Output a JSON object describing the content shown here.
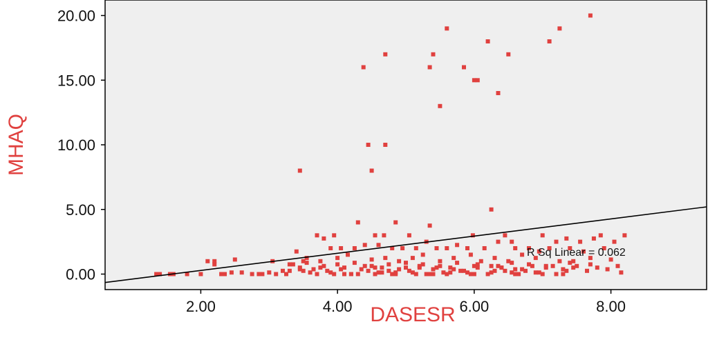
{
  "chart_data": {
    "type": "scatter",
    "xlabel": "DASESR",
    "ylabel": "MHAQ",
    "xlim": [
      0.6,
      9.4
    ],
    "ylim": [
      -1.2,
      21.2
    ],
    "x_ticks": [
      2.0,
      4.0,
      6.0,
      8.0
    ],
    "x_tick_labels": [
      "2.00",
      "4.00",
      "6.00",
      "8.00"
    ],
    "y_ticks": [
      0.0,
      5.0,
      10.0,
      15.0,
      20.0
    ],
    "y_tick_labels": [
      "0.00",
      "5.00",
      "10.00",
      "15.00",
      "20.00"
    ],
    "grid": false,
    "fit_line": {
      "x": [
        0.6,
        9.4
      ],
      "y": [
        -0.65,
        5.2
      ]
    },
    "annotation": "R Sq Linear = 0.062",
    "series": [
      {
        "x": [
          7.7,
          5.6,
          7.25,
          6.2,
          7.1,
          4.7,
          5.4,
          6.5,
          4.38,
          5.35,
          5.85,
          6.0,
          6.05,
          6.35,
          5.5,
          4.45,
          4.7,
          3.45,
          4.5,
          6.25,
          4.3,
          4.85,
          5.35,
          3.7,
          3.95,
          4.55,
          4.68,
          5.05,
          5.98,
          6.45,
          6.55,
          7.0,
          7.2,
          7.35,
          7.55,
          7.75,
          7.85,
          8.2,
          3.4,
          3.55,
          3.8,
          3.9,
          4.05,
          4.25,
          4.4,
          4.6,
          4.8,
          4.95,
          5.15,
          5.3,
          5.45,
          5.6,
          5.75,
          5.9,
          6.15,
          6.35,
          6.6,
          6.8,
          6.95,
          7.1,
          7.4,
          7.6,
          7.9,
          8.05,
          2.1,
          2.2,
          2.5,
          3.05,
          3.3,
          3.5,
          3.75,
          4.0,
          4.15,
          4.5,
          4.7,
          4.9,
          5.1,
          5.25,
          5.5,
          5.7,
          5.95,
          6.1,
          6.3,
          6.5,
          6.7,
          6.9,
          7.25,
          7.45,
          7.7,
          8.0,
          1.4,
          1.6,
          1.8,
          2.3,
          2.6,
          2.9,
          3.2,
          3.45,
          3.65,
          3.85,
          4.1,
          4.35,
          4.55,
          4.75,
          5.0,
          5.2,
          5.4,
          5.65,
          5.85,
          6.05,
          6.25,
          6.4,
          6.6,
          6.85,
          7.05,
          7.3,
          7.5,
          7.8,
          1.35,
          1.55,
          2.0,
          2.35,
          2.75,
          3.1,
          3.3,
          3.6,
          3.95,
          4.2,
          4.45,
          4.65,
          4.85,
          5.05,
          5.3,
          5.55,
          5.8,
          6.0,
          6.3,
          6.55,
          6.75,
          7.0,
          7.35,
          2.2,
          2.45,
          2.85,
          3.0,
          3.25,
          3.5,
          3.7,
          3.9,
          4.1,
          4.3,
          4.6,
          4.8,
          5.1,
          5.35,
          5.6,
          5.9,
          6.2,
          6.45,
          6.65,
          6.95,
          7.2,
          7.65,
          3.35,
          3.55,
          3.8,
          4.0,
          4.25,
          4.5,
          4.75,
          5.0,
          5.25,
          5.5,
          5.75,
          6.05,
          6.35,
          6.55,
          6.8,
          7.05,
          7.4,
          7.7,
          8.1,
          3.45,
          3.75,
          4.05,
          4.4,
          4.65,
          4.9,
          5.2,
          5.45,
          5.7,
          6.0,
          6.4,
          6.7,
          7.15,
          7.45,
          7.95,
          4.2,
          4.55,
          4.85,
          5.15,
          5.4,
          5.65,
          5.95,
          6.25,
          6.6,
          6.9,
          7.3,
          8.15
        ],
        "y": [
          20.0,
          19.0,
          19.0,
          18.0,
          18.0,
          17.0,
          17.0,
          17.0,
          16.0,
          16.0,
          16.0,
          15.0,
          15.0,
          14.0,
          13.0,
          10.0,
          10.0,
          8.0,
          8.0,
          5.0,
          4.0,
          4.0,
          3.75,
          3.0,
          3.0,
          3.0,
          3.0,
          3.0,
          3.0,
          3.0,
          2.5,
          3.0,
          2.5,
          2.75,
          2.5,
          2.75,
          3.0,
          3.0,
          1.75,
          1.25,
          2.75,
          2.0,
          2.0,
          2.0,
          2.25,
          2.25,
          2.0,
          2.0,
          2.0,
          2.5,
          2.0,
          2.0,
          2.25,
          2.0,
          2.0,
          2.5,
          2.0,
          2.0,
          1.75,
          2.0,
          2.0,
          1.75,
          2.0,
          2.5,
          1.0,
          1.0,
          1.125,
          1.0,
          0.75,
          1.0,
          1.0,
          1.25,
          1.5,
          1.125,
          1.25,
          1.0,
          1.25,
          1.5,
          1.0,
          1.25,
          1.5,
          1.0,
          1.25,
          1.0,
          1.5,
          1.25,
          1.0,
          1.0,
          1.25,
          1.125,
          0.0,
          0.0,
          0.0,
          0.0,
          0.125,
          0.0,
          0.25,
          0.5,
          0.375,
          0.25,
          0.5,
          0.375,
          0.5,
          0.25,
          0.5,
          0.5,
          0.375,
          0.5,
          0.25,
          0.5,
          0.625,
          0.5,
          0.375,
          0.625,
          0.5,
          0.375,
          0.625,
          0.5,
          0.0,
          0.0,
          0.0,
          0.0,
          0.0,
          0.0,
          0.25,
          0.125,
          0.0,
          0.0,
          0.25,
          0.125,
          0.0,
          0.25,
          0.0,
          0.125,
          0.25,
          0.0,
          0.25,
          0.125,
          0.25,
          0.0,
          0.25,
          0.75,
          0.125,
          0.0,
          0.125,
          0.0,
          0.25,
          0.0,
          0.125,
          0.0,
          0.0,
          0.125,
          0.0,
          0.125,
          0.0,
          0.0,
          0.125,
          0.0,
          0.25,
          0.0,
          0.125,
          0.0,
          0.25,
          0.75,
          0.875,
          0.625,
          0.75,
          0.875,
          0.625,
          0.75,
          0.875,
          0.75,
          0.625,
          0.875,
          0.75,
          0.625,
          0.875,
          0.75,
          0.625,
          0.875,
          0.75,
          0.625,
          0.375,
          0.5,
          0.375,
          0.625,
          0.5,
          0.375,
          0.625,
          0.5,
          0.375,
          0.625,
          0.5,
          0.375,
          0.625,
          0.5,
          0.375,
          0.0,
          0.0,
          0.125,
          0.0,
          0.0,
          0.125,
          0.0,
          0.125,
          0.0,
          0.125,
          0.0,
          0.125
        ]
      }
    ]
  },
  "colors": {
    "plot_background": "#efefef",
    "point": "#e0413f",
    "axis_title": "#e0413f",
    "fit_line": "#000000",
    "frame": "#000000"
  }
}
